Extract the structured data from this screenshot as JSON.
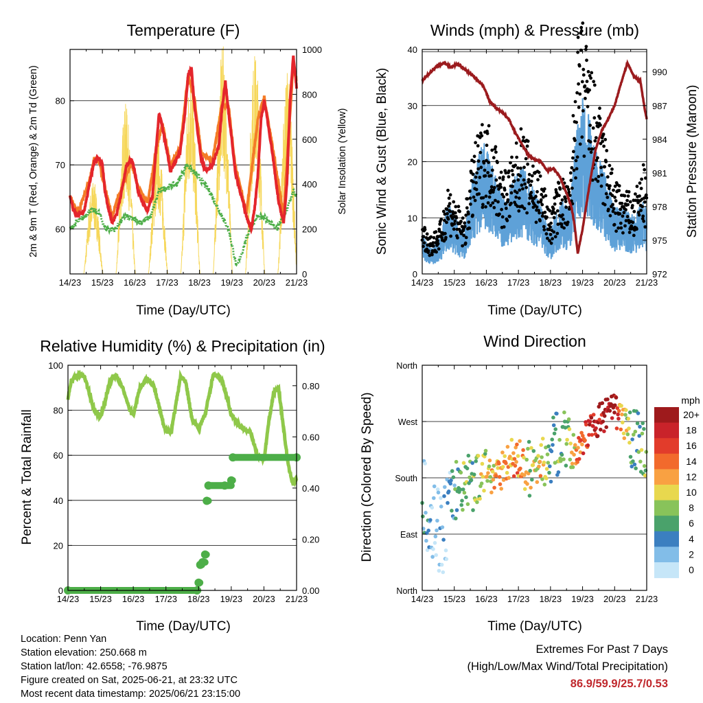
{
  "colors": {
    "temp2m": "#e4262c",
    "temp9m": "#f47c27",
    "dewpoint": "#4dae48",
    "solar": "#f6d75a",
    "wind": "#5ea1d8",
    "gust": "#000000",
    "pressure": "#9b1b1e",
    "rh": "#8fc84a",
    "precip": "#4dae48",
    "extremes": "#c0282d"
  },
  "x_ticks": [
    "14/23",
    "15/23",
    "16/23",
    "17/23",
    "18/23",
    "19/23",
    "20/23",
    "21/23"
  ],
  "panels": {
    "temperature": {
      "title": "Temperature (F)",
      "xlabel": "Time (Day/UTC)",
      "ylabel_left": "2m & 9m T (Red, Orange) & 2m Td (Green)",
      "ylabel_right": "Solar Insolation (Yellow)",
      "left_ticks": [
        "60",
        "70",
        "80"
      ],
      "right_ticks": [
        "0",
        "200",
        "400",
        "600",
        "800",
        "1000"
      ]
    },
    "winds": {
      "title": "Winds (mph) & Pressure (mb)",
      "xlabel": "Time (Day/UTC)",
      "ylabel_left": "Sonic Wind & Gust (Blue, Black)",
      "ylabel_right": "Station Pressure (Maroon)",
      "left_ticks": [
        "0",
        "10",
        "20",
        "30",
        "40"
      ],
      "right_ticks": [
        "972",
        "975",
        "978",
        "981",
        "984",
        "987",
        "990"
      ]
    },
    "humidity": {
      "title": "Relative Humidity (%) & Precipitation (in)",
      "xlabel": "Time (Day/UTC)",
      "ylabel_left": "Percent & Total Rainfall",
      "left_ticks": [
        "0",
        "20",
        "40",
        "60",
        "80",
        "100"
      ],
      "right_ticks": [
        "0.00",
        "0.20",
        "0.40",
        "0.60",
        "0.80"
      ]
    },
    "direction": {
      "title": "Wind Direction",
      "xlabel": "Time (Day/UTC)",
      "ylabel_left": "Direction (Colored By Speed)",
      "left_ticks": [
        "North",
        "East",
        "South",
        "West",
        "North"
      ]
    }
  },
  "legend": {
    "unit": "mph",
    "labels": [
      "20+",
      "18",
      "16",
      "14",
      "12",
      "10",
      "8",
      "6",
      "4",
      "2",
      "0"
    ],
    "colors": [
      "#9e1a1c",
      "#c9232a",
      "#e23c2b",
      "#f26a2c",
      "#f9a142",
      "#e8d84e",
      "#88c35a",
      "#4aa26b",
      "#3b7fc0",
      "#82bde8",
      "#c6e6f8"
    ]
  },
  "info": {
    "location": "Location: Penn Yan",
    "elevation": "Station elevation: 250.668 m",
    "latlon": "Station lat/lon: 42.6558; -76.9875",
    "created": "Figure created on Sat, 2025-06-21, at 23:32 UTC",
    "latest": "Most recent data timestamp: 2025/06/21 23:15:00"
  },
  "extremes": {
    "title": "Extremes For Past 7 Days",
    "subtitle": "(High/Low/Max Wind/Total Precipitation)",
    "values": "86.9/59.9/25.7/0.53"
  },
  "chart_data": [
    {
      "type": "line",
      "title": "Temperature (F)",
      "xlabel": "Time (Day/UTC)",
      "ylabel": "2m & 9m T (Red, Orange) & 2m Td (Green)",
      "ylabel_right": "Solar Insolation (Yellow)",
      "x_unit": "days since 14/23",
      "x_range": [
        0,
        7
      ],
      "ylim": [
        53,
        88
      ],
      "ylim_right": [
        0,
        1000
      ],
      "grid": true,
      "series": [
        {
          "name": "2m T",
          "axis": "left",
          "x": [
            0,
            0.1,
            0.25,
            0.45,
            0.6,
            0.75,
            0.9,
            1.0,
            1.08,
            1.15,
            1.3,
            1.45,
            1.6,
            1.75,
            1.9,
            2.0,
            2.1,
            2.25,
            2.4,
            2.55,
            2.65,
            2.75,
            2.85,
            3.0,
            3.1,
            3.25,
            3.4,
            3.55,
            3.65,
            3.75,
            3.85,
            3.95,
            4.05,
            4.2,
            4.4,
            4.6,
            4.7,
            4.8,
            4.9,
            5.0,
            5.1,
            5.25,
            5.45,
            5.6,
            5.7,
            5.8,
            5.9,
            6.0,
            6.1,
            6.25,
            6.45,
            6.6,
            6.7,
            6.8,
            6.9,
            7.0
          ],
          "y": [
            65,
            63,
            62,
            63,
            67,
            70.5,
            71,
            70,
            66,
            64,
            61,
            62.5,
            66,
            70,
            71,
            69,
            66,
            64,
            63,
            65,
            72,
            78,
            76,
            72,
            69,
            70.5,
            72,
            78,
            84,
            85,
            79,
            75,
            71,
            69,
            70,
            73,
            79,
            83,
            78,
            74,
            69,
            66,
            62,
            60,
            63,
            68,
            77,
            80,
            77,
            72,
            64,
            61,
            67,
            80,
            87,
            82
          ]
        },
        {
          "name": "9m T",
          "axis": "left",
          "x": [
            0,
            0.25,
            0.6,
            0.75,
            0.9,
            1.1,
            1.3,
            1.6,
            1.9,
            2.1,
            2.4,
            2.65,
            2.85,
            3.1,
            3.4,
            3.65,
            3.85,
            4.05,
            4.4,
            4.7,
            4.9,
            5.1,
            5.45,
            5.8,
            6.0,
            6.25,
            6.6,
            6.9,
            7.0
          ],
          "y": [
            65,
            62.5,
            67.5,
            71,
            70.5,
            66,
            62,
            66.5,
            70.5,
            66.5,
            64,
            72,
            76.5,
            70,
            72.5,
            84,
            80,
            72,
            70.5,
            79.5,
            79,
            70,
            62.5,
            77,
            80.5,
            73,
            62,
            86,
            83
          ]
        },
        {
          "name": "2m Td",
          "axis": "left",
          "x": [
            0,
            0.2,
            0.45,
            0.65,
            0.9,
            1.1,
            1.4,
            1.7,
            2.0,
            2.2,
            2.5,
            2.75,
            3.0,
            3.3,
            3.6,
            3.8,
            4.0,
            4.3,
            4.6,
            4.9,
            5.15,
            5.35,
            5.55,
            5.8,
            6.1,
            6.4,
            6.7,
            6.9,
            7.0
          ],
          "y": [
            60,
            61,
            62,
            63,
            62.5,
            60,
            60,
            62,
            61.5,
            61,
            62,
            66,
            66.5,
            67,
            70,
            69,
            68,
            66,
            63,
            60,
            54,
            57,
            60,
            62,
            61.5,
            60,
            63,
            66,
            65
          ]
        },
        {
          "name": "Solar Insolation",
          "axis": "right",
          "daily_peaks_x": [
            0.72,
            1.72,
            2.72,
            3.72,
            4.72,
            5.72,
            6.72
          ],
          "daily_peaks_y": [
            420,
            760,
            600,
            900,
            1020,
            990,
            920
          ]
        }
      ]
    },
    {
      "type": "line",
      "title": "Winds (mph) & Pressure (mb)",
      "xlabel": "Time (Day/UTC)",
      "ylabel": "Sonic Wind & Gust (Blue, Black)",
      "ylabel_right": "Station Pressure (Maroon)",
      "x_unit": "days since 14/23",
      "x_range": [
        0,
        7
      ],
      "ylim": [
        0,
        40
      ],
      "ylim_right": [
        972,
        992
      ],
      "grid": true,
      "series": [
        {
          "name": "Sonic Wind",
          "axis": "left",
          "x": [
            0,
            0.3,
            0.6,
            0.8,
            1.0,
            1.3,
            1.6,
            1.9,
            2.2,
            2.5,
            2.8,
            3.1,
            3.4,
            3.7,
            4.0,
            4.3,
            4.6,
            4.8,
            5.0,
            5.2,
            5.4,
            5.7,
            6.0,
            6.3,
            6.6,
            6.9,
            7.0
          ],
          "y": [
            5,
            3,
            5,
            9,
            7,
            5,
            12,
            16,
            13,
            9,
            11,
            13,
            11,
            8,
            5,
            9,
            8,
            17,
            21,
            19,
            15,
            12,
            8,
            8,
            7,
            9,
            8
          ]
        },
        {
          "name": "Gust",
          "axis": "left",
          "x": [
            0,
            0.3,
            0.6,
            0.8,
            1.0,
            1.3,
            1.6,
            1.9,
            2.2,
            2.5,
            2.8,
            3.1,
            3.4,
            3.7,
            4.0,
            4.3,
            4.6,
            4.8,
            5.0,
            5.2,
            5.4,
            5.7,
            6.0,
            6.3,
            6.6,
            6.9,
            7.0
          ],
          "y": [
            7,
            5,
            7,
            12,
            10,
            7,
            16,
            20,
            19,
            13,
            15,
            19,
            16,
            13,
            8,
            13,
            11,
            29,
            33,
            28,
            24,
            18,
            12,
            11,
            10,
            14,
            12
          ]
        },
        {
          "name": "Station Pressure",
          "axis": "right",
          "x": [
            0,
            0.2,
            0.45,
            0.7,
            0.9,
            1.1,
            1.35,
            1.6,
            1.9,
            2.1,
            2.3,
            2.5,
            2.7,
            2.9,
            3.1,
            3.3,
            3.5,
            3.7,
            3.9,
            4.1,
            4.3,
            4.5,
            4.65,
            4.75,
            4.85,
            5.0,
            5.2,
            5.4,
            5.6,
            5.8,
            6.0,
            6.2,
            6.4,
            6.6,
            6.8,
            6.95,
            7.0
          ],
          "y": [
            989.2,
            989.8,
            990.5,
            990.8,
            990.4,
            990.7,
            990.2,
            989.6,
            988.8,
            987.4,
            986.8,
            986.4,
            985.8,
            984.6,
            983.6,
            982.6,
            982.2,
            982.0,
            981.2,
            981.4,
            980.6,
            979.2,
            978.0,
            976.4,
            973.8,
            976,
            979.6,
            983,
            984.8,
            985.8,
            987,
            989,
            990.8,
            989.6,
            989.2,
            986.5,
            985.8
          ]
        }
      ]
    },
    {
      "type": "line",
      "title": "Relative Humidity (%) & Precipitation (in)",
      "xlabel": "Time (Day/UTC)",
      "ylabel": "Percent & Total Rainfall",
      "x_unit": "days since 14/23",
      "x_range": [
        0,
        7
      ],
      "ylim": [
        0,
        100
      ],
      "ylim_right": [
        0,
        0.88
      ],
      "grid": true,
      "series": [
        {
          "name": "Relative Humidity",
          "axis": "left",
          "x": [
            0,
            0.1,
            0.3,
            0.5,
            0.65,
            0.8,
            1.0,
            1.15,
            1.3,
            1.5,
            1.7,
            1.9,
            2.0,
            2.2,
            2.4,
            2.6,
            2.75,
            2.95,
            3.15,
            3.3,
            3.45,
            3.6,
            3.8,
            4.0,
            4.2,
            4.45,
            4.7,
            4.9,
            5.0,
            5.2,
            5.4,
            5.6,
            5.8,
            6.0,
            6.15,
            6.3,
            6.45,
            6.6,
            6.75,
            6.9,
            7.0
          ],
          "y": [
            85,
            93,
            96,
            95,
            88,
            80,
            77,
            85,
            94,
            95,
            89,
            80,
            78,
            90,
            94,
            92,
            84,
            72,
            70,
            82,
            95,
            93,
            76,
            72,
            78,
            96,
            94,
            84,
            78,
            74,
            72,
            70,
            60,
            58,
            75,
            88,
            90,
            72,
            55,
            47,
            50
          ]
        },
        {
          "name": "Total Precipitation",
          "axis": "right",
          "x": [
            0,
            3.95,
            4.0,
            4.05,
            4.12,
            4.2,
            4.25,
            4.3,
            4.8,
            5.0,
            5.05,
            7.0
          ],
          "y": [
            0,
            0,
            0.03,
            0.1,
            0.11,
            0.14,
            0.35,
            0.41,
            0.41,
            0.43,
            0.52,
            0.52
          ]
        }
      ]
    },
    {
      "type": "scatter",
      "title": "Wind Direction",
      "xlabel": "Time (Day/UTC)",
      "ylabel": "Direction (Colored By Speed)",
      "x_unit": "days since 14/23",
      "x_range": [
        0,
        7
      ],
      "ylim": [
        0,
        360
      ],
      "ytick_values": [
        0,
        90,
        180,
        270,
        360
      ],
      "grid": true,
      "colorbar": "speed (mph)",
      "series": [
        {
          "name": "Wind Direction",
          "x": [
            0,
            0.3,
            0.6,
            0.9,
            1.0,
            1.2,
            1.5,
            1.7,
            2.0,
            2.3,
            2.6,
            2.8,
            3.0,
            3.2,
            3.4,
            3.6,
            3.8,
            4.0,
            4.2,
            4.4,
            4.6,
            4.8,
            5.0,
            5.2,
            5.4,
            5.6,
            5.8,
            6.0,
            6.2,
            6.4,
            6.6,
            6.8,
            7.0
          ],
          "y": [
            150,
            110,
            90,
            140,
            165,
            170,
            175,
            180,
            185,
            190,
            200,
            205,
            210,
            195,
            190,
            200,
            205,
            215,
            240,
            245,
            230,
            225,
            235,
            255,
            270,
            275,
            285,
            290,
            270,
            250,
            240,
            230,
            215
          ],
          "speed": [
            3,
            2,
            1,
            3,
            5,
            7,
            7,
            8,
            10,
            12,
            13,
            12,
            14,
            10,
            9,
            11,
            9,
            4,
            6,
            7,
            8,
            12,
            16,
            17,
            18,
            19,
            20,
            20,
            12,
            8,
            6,
            6,
            8
          ]
        }
      ]
    }
  ]
}
